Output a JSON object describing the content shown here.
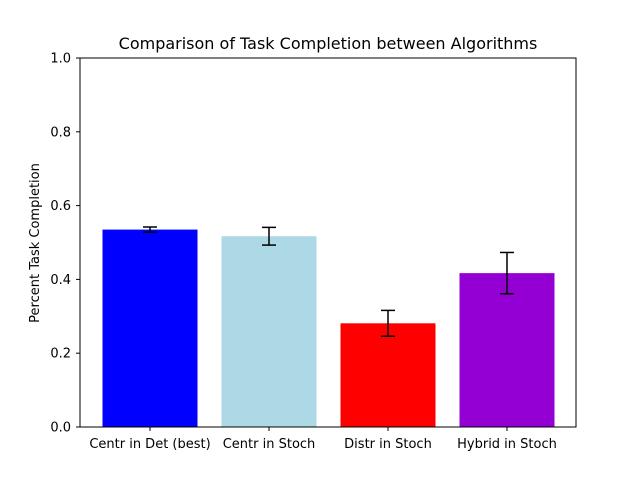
{
  "chart_data": {
    "type": "bar",
    "title": "Comparison of Task Completion between Algorithms",
    "xlabel": "",
    "ylabel": "Percent Task Completion",
    "categories": [
      "Centr in Det (best)",
      "Centr in Stoch",
      "Distr in Stoch",
      "Hybrid in Stoch"
    ],
    "values": [
      0.535,
      0.517,
      0.281,
      0.417
    ],
    "errors": [
      0.007,
      0.024,
      0.035,
      0.056
    ],
    "colors": [
      "#0000ff",
      "#add8e6",
      "#ff0000",
      "#9400d3"
    ],
    "ylim": [
      0,
      1.0
    ],
    "yticks": [
      "0.0",
      "0.2",
      "0.4",
      "0.6",
      "0.8",
      "1.0"
    ],
    "grid": false,
    "legend": "none"
  }
}
